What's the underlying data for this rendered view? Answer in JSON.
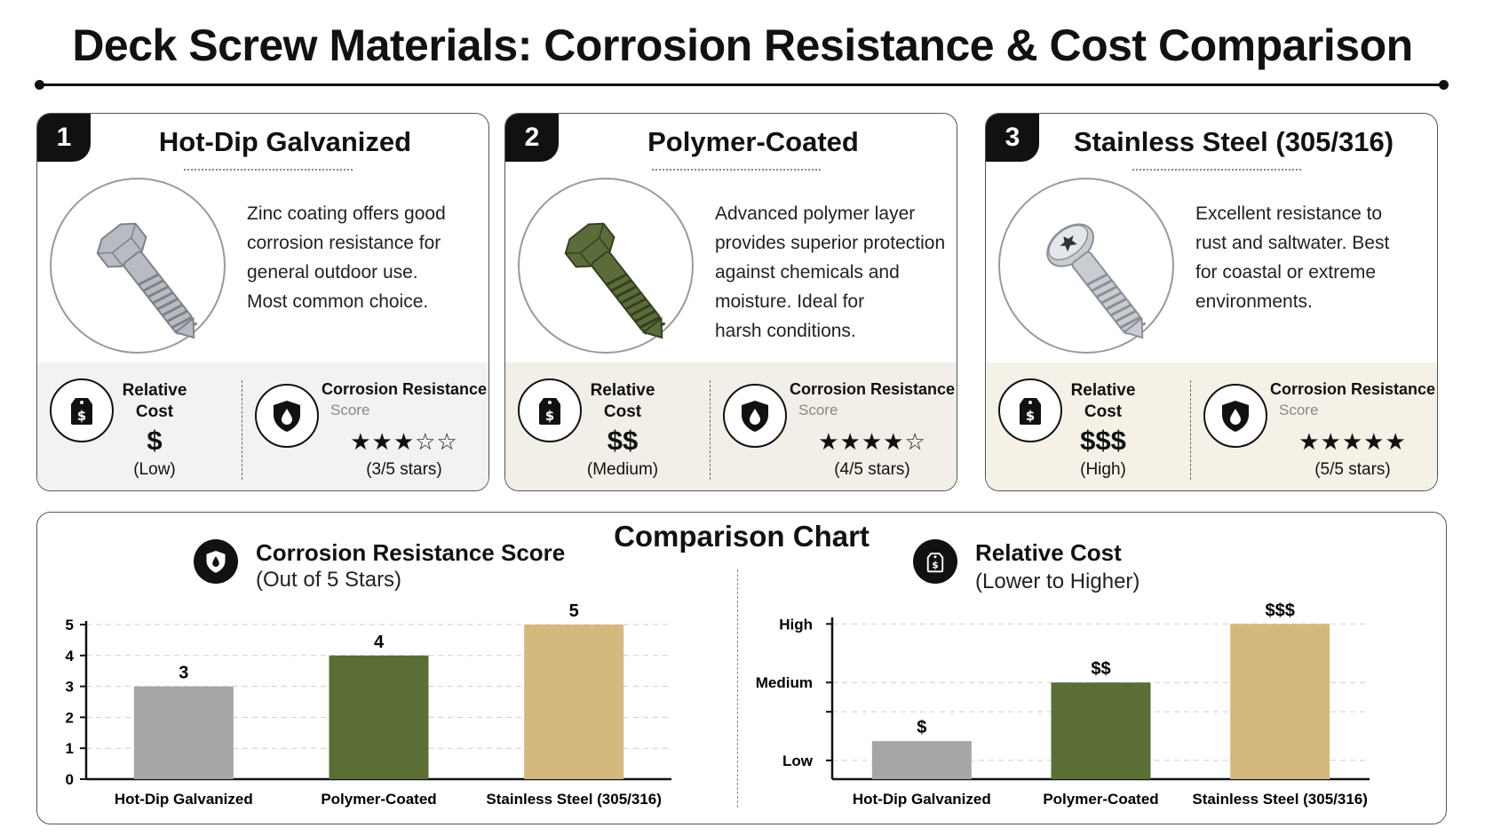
{
  "title": "Deck Screw Materials: Corrosion Resistance & Cost Comparison",
  "cards": [
    {
      "number": "1",
      "title": "Hot-Dip Galvanized",
      "image_icon": "hex-head-screw-icon",
      "screw_color": "#b8bcc2",
      "description": [
        "Zinc coating offers good",
        "corrosion resistance for",
        "general outdoor use.",
        "Most common choice."
      ],
      "cost_label": [
        "Relative",
        "Cost"
      ],
      "cost_symbol": "$",
      "cost_level": "(Low)",
      "corrosion_label": "Corrosion Resistance",
      "corrosion_sub": "Score",
      "stars": 3,
      "stars_text": "(3/5 stars)",
      "stats_bg": "#f2f2f2"
    },
    {
      "number": "2",
      "title": "Polymer-Coated",
      "image_icon": "hex-head-screw-icon",
      "screw_color": "#5b6b3a",
      "description": [
        "Advanced polymer layer",
        "provides superior protection",
        "against chemicals and",
        "moisture. Ideal for",
        "harsh conditions."
      ],
      "cost_label": [
        "Relative",
        "Cost"
      ],
      "cost_symbol": "$$",
      "cost_level": "(Medium)",
      "corrosion_label": "Corrosion Resistance",
      "corrosion_sub": "Score",
      "stars": 4,
      "stars_text": "(4/5 stars)",
      "stats_bg": "#f1efe8"
    },
    {
      "number": "3",
      "title": "Stainless Steel (305/316)",
      "image_icon": "torx-pan-head-screw-icon",
      "screw_color": "#c9cdd2",
      "description": [
        "Excellent resistance to",
        "rust and saltwater. Best",
        "for coastal or extreme",
        "environments."
      ],
      "cost_label": [
        "Relative",
        "Cost"
      ],
      "cost_symbol": "$$$",
      "cost_level": "(High)",
      "corrosion_label": "Corrosion Resistance",
      "corrosion_sub": "Score",
      "stars": 5,
      "stars_text": "(5/5 stars)",
      "stats_bg": "#f5f1e6"
    }
  ],
  "chart_panel_title": "Comparison Chart",
  "chart_data": [
    {
      "type": "bar",
      "title": "Corrosion Resistance Score",
      "subtitle": "(Out of 5 Stars)",
      "icon": "shield-drop-icon",
      "categories": [
        "Hot-Dip Galvanized",
        "Polymer-Coated",
        "Stainless Steel (305/316)"
      ],
      "values": [
        3,
        4,
        5
      ],
      "data_labels": [
        "3",
        "4",
        "5"
      ],
      "colors": [
        "#a6a6a6",
        "#5b6e35",
        "#d4b97e"
      ],
      "ylim": [
        0,
        5
      ],
      "yticks": [
        "0",
        "1",
        "2",
        "3",
        "4",
        "5"
      ],
      "grid": true
    },
    {
      "type": "bar",
      "title": "Relative Cost",
      "subtitle": "(Lower to Higher)",
      "icon": "price-tag-icon",
      "categories": [
        "Hot-Dip Galvanized",
        "Polymer-Coated",
        "Stainless Steel (305/316)"
      ],
      "values": [
        1,
        2,
        3
      ],
      "data_labels": [
        "$",
        "$$",
        "$$$"
      ],
      "colors": [
        "#a6a6a6",
        "#5b6e35",
        "#d4b97e"
      ],
      "ylim": [
        0.35,
        3.05
      ],
      "yticks": [
        {
          "label": "Low",
          "value": 0.67
        },
        {
          "label": "Medium",
          "value": 2
        },
        {
          "label": "High",
          "value": 3
        }
      ],
      "grid": true
    }
  ]
}
